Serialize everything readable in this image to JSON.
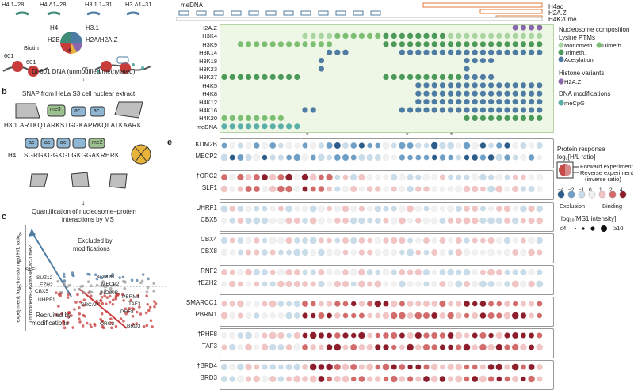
{
  "panel_a": {
    "top_labels": [
      "H4 1–28",
      "H4 Δ1–28",
      "H3.1 1–31",
      "H3 Δ1–31"
    ],
    "histones": [
      "H4",
      "H3.1",
      "H2B",
      "H2A/H2A.Z"
    ],
    "biotin": "Biotin",
    "or": "or",
    "nuc601": [
      "601",
      "601"
    ],
    "caption": "Di-601 DNA (unmodified/methylated)"
  },
  "panel_b": {
    "letter": "b",
    "title": "SNAP from HeLa S3 cell nuclear extract",
    "marks": [
      "me3",
      "ac",
      "ac",
      "ac",
      "ac",
      "ac",
      "me2"
    ],
    "h31_label": "H3.1",
    "h31_seq": "ARTKQTARKSTGGKAPRKQLATKAARK",
    "h4_label": "H4",
    "h4_seq": "SGRGKGGKGLGKGGAKRHRK",
    "caption1": "Quantification of nucleosome–protein",
    "caption2": "interactions by MS"
  },
  "panel_c": {
    "letter": "c",
    "ylabel1": "experiment, log₂-transformed H/L ratio",
    "ylabel2": "unmodified/H3K4me3H4ac20me2",
    "yticks": [
      "8",
      "4",
      "0",
      "−4"
    ],
    "excluded1": "Excluded by",
    "excluded2": "modifications",
    "recruited1": "Recruited by",
    "recruited2": "modifications",
    "points_labels": [
      "SLF1",
      "SUZ12",
      "EZH2",
      "CBX5",
      "UHRF1",
      "KDM2B",
      "MECP2",
      "INO80B",
      "SRCAP",
      "PBRM1",
      "PHF8",
      "TAF3",
      "ORC2",
      "BRD3"
    ]
  },
  "panel_d": {
    "top_tracks": [
      "meDNA",
      "H4ac",
      "H2A.Z",
      "H4K20me"
    ],
    "rows": [
      "H2A.Z",
      "H3K4",
      "H3K9",
      "H3K14",
      "H3K18",
      "H3K23",
      "H3K27",
      "H4K5",
      "H4K8",
      "H4K12",
      "H4K16",
      "H4K20",
      "meDNA"
    ],
    "legend": {
      "title1": "Nucleosome composition",
      "title2": "Lysine PTMs",
      "monomethyl": "Monometh.",
      "dimethyl": "Dimeth.",
      "trimethyl": "Trimeth.",
      "acetylation": "Acetylation",
      "variants_title": "Histone variants",
      "h2az": "H2A.Z",
      "dna_title": "DNA modifications",
      "mecpg": "meCpG"
    },
    "colors": {
      "mono": "#a8d5a0",
      "di": "#7cbf72",
      "tri": "#4c9a5a",
      "ac": "#4f7ca3",
      "h2az": "#8a66ad",
      "mecpg": "#5ab0a8"
    }
  },
  "panel_e": {
    "letter": "e",
    "groups": [
      [
        "KDM2B",
        "MECP2"
      ],
      [
        "†ORC2",
        "SLF1"
      ],
      [
        "UHRF1",
        "CBX5"
      ],
      [
        "CBX4",
        "CBX8"
      ],
      [
        "RNF2",
        "†EZH2"
      ],
      [
        "SMARCC1",
        "PBRM1"
      ],
      [
        "†PHF8",
        "TAF3"
      ],
      [
        "†BRD4",
        "BRD3"
      ]
    ],
    "legend": {
      "title1": "Protein response",
      "title2": "log₂[H/L ratio]",
      "forward": "Forward experiment",
      "reverse": "Reverse experiment",
      "inverse": "(inverse ratio)",
      "scale_ticks": [
        "−4",
        "−2",
        "−1",
        "0",
        "1",
        "2",
        "4"
      ],
      "exclusion": "Exclusion",
      "binding": "Binding",
      "intensity_title": "log₁₀[MS1 intensity]",
      "intensity_min": "≤4",
      "intensity_max": "≥10"
    }
  }
}
